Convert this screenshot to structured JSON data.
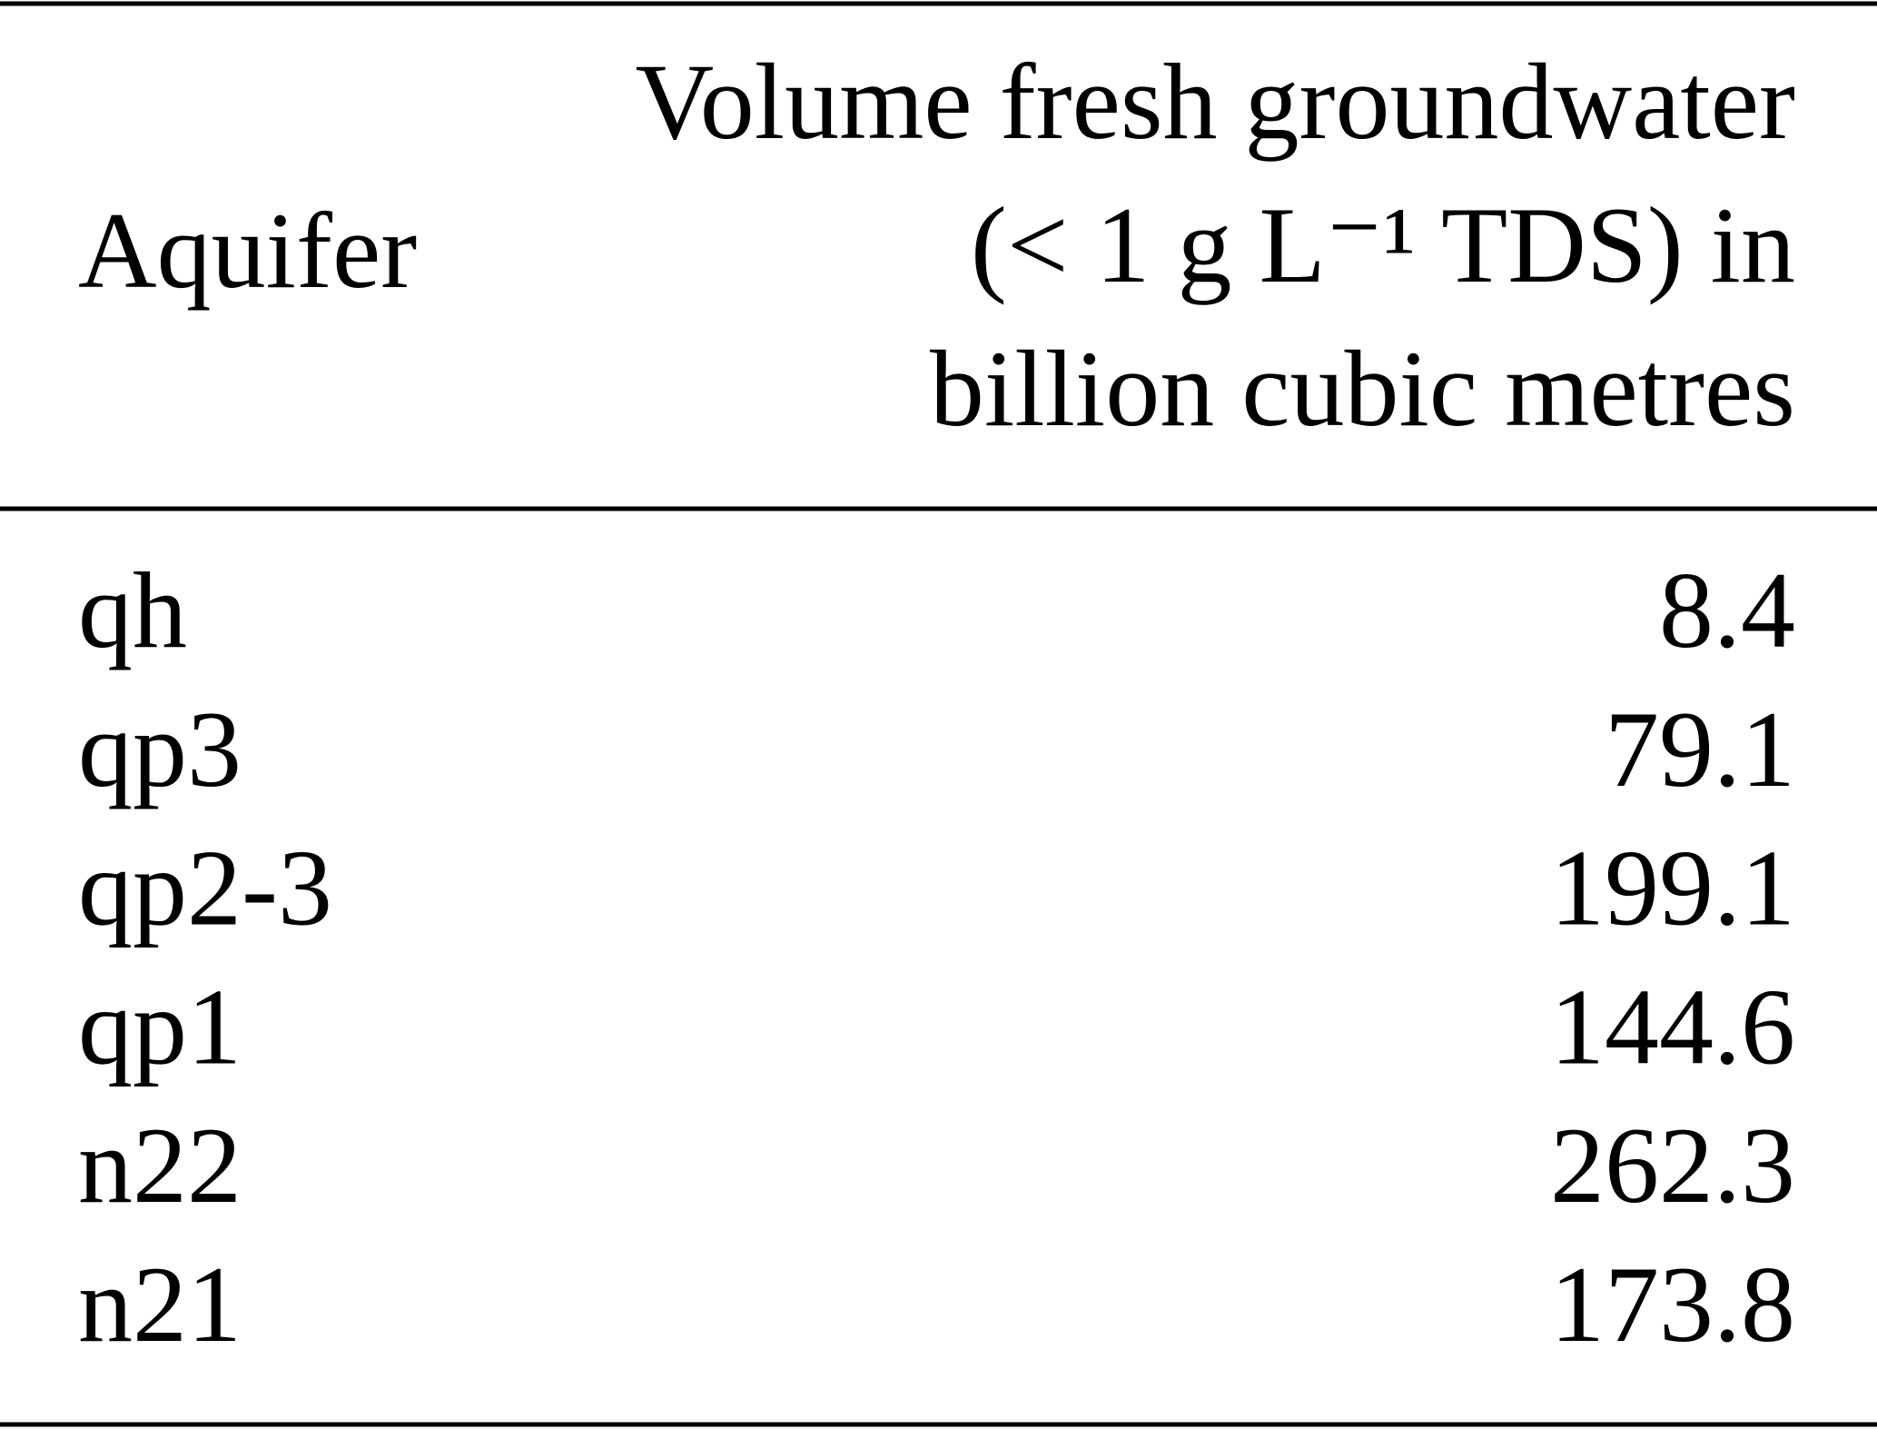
{
  "table": {
    "headers": [
      "Aquifer",
      [
        "Volume fresh groundwater",
        "(< 1 g L⁻¹ TDS) in",
        "billion cubic metres"
      ]
    ],
    "rows": [
      [
        "qh",
        8.4
      ],
      [
        "qp3",
        79.1
      ],
      [
        "qp2-3",
        199.1
      ],
      [
        "qp1",
        144.6
      ],
      [
        "n22",
        262.3
      ],
      [
        "n21",
        173.8
      ]
    ]
  }
}
